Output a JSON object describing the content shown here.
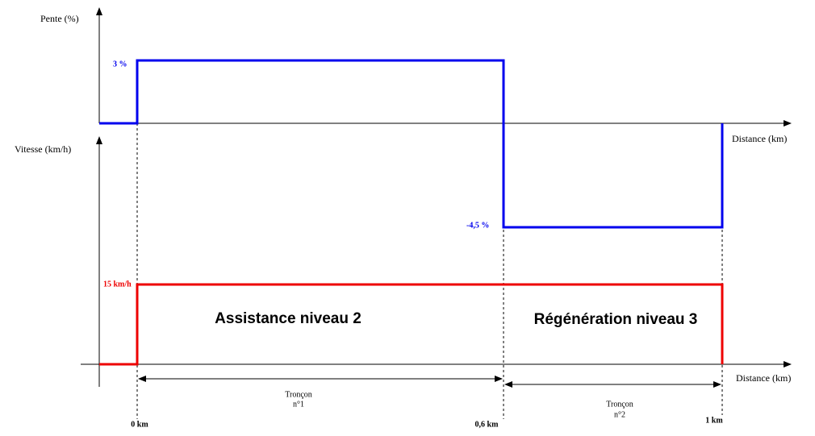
{
  "top_chart": {
    "y_label": "Pente (%)",
    "x_label": "Distance (km)",
    "upper_level": "3 %",
    "lower_level": "-4,5 %"
  },
  "bottom_chart": {
    "y_label": "Vitesse (km/h)",
    "x_label": "Distance (km)",
    "level": "15 km/h",
    "zones": [
      "Assistance niveau 2",
      "Régénération niveau 3"
    ]
  },
  "sections": [
    {
      "line1": "Tronçon",
      "line2": "n°1"
    },
    {
      "line1": "Tronçon",
      "line2": "n°2"
    }
  ],
  "distance_marks": [
    "0 km",
    "0,6 km",
    "1 km"
  ]
}
